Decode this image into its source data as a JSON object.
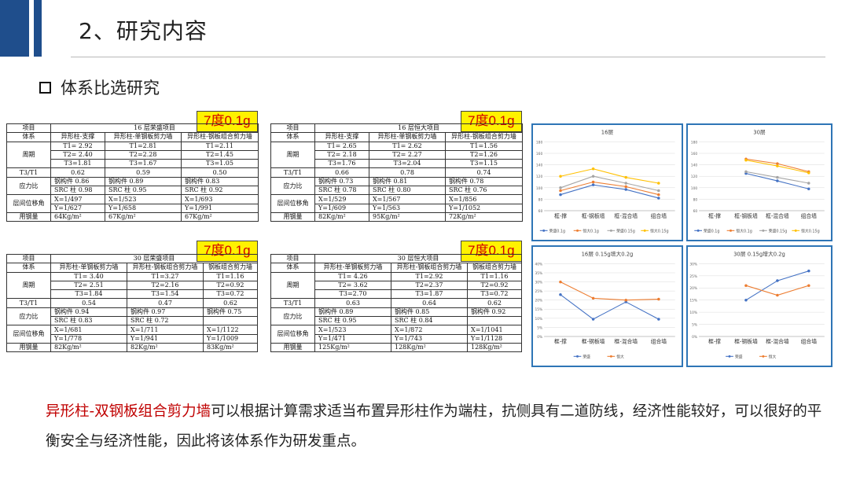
{
  "header": {
    "title": "2、研究内容"
  },
  "section": {
    "heading": "体系比选研究"
  },
  "tags": {
    "t1": "7度0.1g",
    "t2": "7度0.1g",
    "t3": "7度0.1g",
    "t4": "7度0.1g"
  },
  "tables": [
    {
      "title": "16 层荣盛项目",
      "labels": {
        "item": "项目",
        "system": "体系",
        "period": "周期",
        "ratio": "T3/T1",
        "stress": "应力比",
        "drift": "层间位移角",
        "steel": "用钢量"
      },
      "systems": [
        "异形柱-支撑",
        "异形柱-单钢板剪力墙",
        "异形柱-钢板组合剪力墙"
      ],
      "t1": [
        "T1= 2.92",
        "T1=2.81",
        "T1=2.11"
      ],
      "t2": [
        "T2= 2.40",
        "T2=2.28",
        "T2=1.45"
      ],
      "t3": [
        "T3=1.81",
        "T3=1.67",
        "T3=1.05"
      ],
      "ratio": [
        "0.62",
        "0.59",
        "0.50"
      ],
      "stress1": [
        "钢构件 0.86",
        "钢构件 0.89",
        "钢构件 0.83"
      ],
      "stress2": [
        "SRC 柱 0.98",
        "SRC 柱 0.95",
        "SRC 柱 0.92"
      ],
      "drift1": [
        "X=1/497",
        "X=1/523",
        "X=1/693"
      ],
      "drift2": [
        "Y=1/627",
        "Y=1/658",
        "Y=1/991"
      ],
      "steel": [
        "64Kg/m²",
        "67Kg/m²",
        "67Kg/m²"
      ]
    },
    {
      "title": "16 层恒大项目",
      "labels": {
        "item": "项目",
        "system": "体系",
        "period": "周期",
        "ratio": "T3/T1",
        "stress": "应力比",
        "drift": "层间位移角",
        "steel": "用钢量"
      },
      "systems": [
        "异形柱-支撑",
        "异形柱-单钢板剪力墙",
        "异形柱-钢板组合剪力墙"
      ],
      "t1": [
        "T1= 2.65",
        "T1= 2.62",
        "T1=1.56"
      ],
      "t2": [
        "T2= 2.18",
        "T2= 2.27",
        "T2=1.26"
      ],
      "t3": [
        "T3=1.76",
        "T3=2.04",
        "T3=1.15"
      ],
      "ratio": [
        "0.66",
        "0.78",
        "0.74"
      ],
      "stress1": [
        "钢构件 0.73",
        "钢构件 0.81",
        "钢构件 0.78"
      ],
      "stress2": [
        "SRC 柱 0.78",
        "SRC 柱 0.80",
        "SRC 柱 0.76"
      ],
      "drift1": [
        "X=1/529",
        "X=1/567",
        "X=1/856"
      ],
      "drift2": [
        "Y=1/609",
        "Y=1/563",
        "Y=1/1052"
      ],
      "steel": [
        "82Kg/m²",
        "95Kg/m²",
        "72Kg/m²"
      ]
    },
    {
      "title": "30 层荣盛项目",
      "labels": {
        "item": "项目",
        "system": "体系",
        "period": "周期",
        "ratio": "T3/T1",
        "stress": "应力比",
        "drift": "层间位移角",
        "steel": "用钢量"
      },
      "systems": [
        "异形柱-单钢板剪力墙",
        "异形柱-钢板组合剪力墙",
        "钢板组合剪力墙"
      ],
      "t1": [
        "T1= 3.40",
        "T1=3.27",
        "T1=1.16"
      ],
      "t2": [
        "T2= 2.51",
        "T2=2.16",
        "T2=0.92"
      ],
      "t3": [
        "T3=1.84",
        "T3=1.54",
        "T3=0.72"
      ],
      "ratio": [
        "0.54",
        "0.47",
        "0.62"
      ],
      "stress1": [
        "钢构件 0.94",
        "钢构件 0.97",
        "钢构件 0.75"
      ],
      "stress2": [
        "SRC 柱 0.83",
        "SRC 柱 0.72",
        ""
      ],
      "drift1": [
        "X=1/681",
        "X=1/711",
        "X=1/1122"
      ],
      "drift2": [
        "Y=1/778",
        "Y=1/941",
        "Y=1/1009"
      ],
      "steel": [
        "82Kg/m²",
        "82Kg/m²",
        "83Kg/m²"
      ]
    },
    {
      "title": "30 层恒大项目",
      "labels": {
        "item": "项目",
        "system": "体系",
        "period": "周期",
        "ratio": "T3/T1",
        "stress": "应力比",
        "drift": "层间位移角",
        "steel": "用钢量"
      },
      "systems": [
        "异形柱-单钢板剪力墙",
        "异形柱-钢板组合剪力墙",
        "钢板组合剪力墙"
      ],
      "t1": [
        "T1= 4.26",
        "T1=2.92",
        "T1=1.16"
      ],
      "t2": [
        "T2= 3.62",
        "T2=2.37",
        "T2=0.92"
      ],
      "t3": [
        "T3=2.70",
        "T3=1.87",
        "T3=0.72"
      ],
      "ratio": [
        "0.63",
        "0.64",
        "0.62"
      ],
      "stress1": [
        "钢构件 0.89",
        "钢构件 0.85",
        "钢构件 0.92"
      ],
      "stress2": [
        "SRC 柱 0.95",
        "SRC 柱 0.84",
        ""
      ],
      "drift1": [
        "X=1/523",
        "X=1/872",
        "X=1/1041"
      ],
      "drift2": [
        "Y=1/471",
        "Y=1/743",
        "Y=1/1128"
      ],
      "steel": [
        "125Kg/m²",
        "128Kg/m²",
        "128Kg/m²"
      ]
    }
  ],
  "chart_data": [
    {
      "type": "line",
      "title": "16层",
      "categories": [
        "框-撑",
        "框-钢板墙",
        "框-混合墙",
        "组合墙"
      ],
      "ylim": [
        60,
        180
      ],
      "yticks": [
        60,
        80,
        100,
        120,
        140,
        160,
        180
      ],
      "series": [
        {
          "name": "荣盛0.1g",
          "color": "#4472c4",
          "values": [
            88,
            105,
            97,
            82
          ]
        },
        {
          "name": "恒大0.1g",
          "color": "#ed7d31",
          "values": [
            95,
            110,
            102,
            88
          ]
        },
        {
          "name": "荣盛0.15g",
          "color": "#a5a5a5",
          "values": [
            100,
            120,
            108,
            95
          ]
        },
        {
          "name": "恒大0.15g",
          "color": "#ffc000",
          "values": [
            120,
            133,
            118,
            108
          ]
        }
      ],
      "grid": true,
      "legend": "bottom"
    },
    {
      "type": "line",
      "title": "30层",
      "categories": [
        "框-撑",
        "框-钢板墙",
        "框-混合墙",
        "组合墙"
      ],
      "ylim": [
        60,
        180
      ],
      "yticks": [
        60,
        80,
        100,
        120,
        140,
        160,
        180
      ],
      "series": [
        {
          "name": "荣盛0.1g",
          "color": "#4472c4",
          "values": [
            null,
            125,
            112,
            98
          ]
        },
        {
          "name": "恒大0.1g",
          "color": "#ed7d31",
          "values": [
            null,
            150,
            142,
            128
          ]
        },
        {
          "name": "荣盛0.15g",
          "color": "#a5a5a5",
          "values": [
            null,
            128,
            118,
            108
          ]
        },
        {
          "name": "恒大0.15g",
          "color": "#ffc000",
          "values": [
            null,
            148,
            138,
            126
          ]
        }
      ],
      "grid": true,
      "legend": "bottom"
    },
    {
      "type": "line",
      "title": "16层 0.15g增大0.2g",
      "categories": [
        "框-撑",
        "框-钢板墙",
        "框-混合墙",
        "组合墙"
      ],
      "ylim": [
        0,
        40
      ],
      "yticks": [
        "0%",
        "5%",
        "10%",
        "15%",
        "20%",
        "25%",
        "30%",
        "35%",
        "40%"
      ],
      "series": [
        {
          "name": "荣盛",
          "color": "#4472c4",
          "values": [
            23,
            9.5,
            19,
            9.5
          ]
        },
        {
          "name": "恒大",
          "color": "#ed7d31",
          "values": [
            30,
            21,
            20,
            20.5
          ]
        }
      ],
      "grid": true,
      "legend": "bottom"
    },
    {
      "type": "line",
      "title": "30层 0.15g增大0.2g",
      "categories": [
        "框-撑",
        "框-钢板墙",
        "框-混合墙",
        "组合墙"
      ],
      "ylim": [
        0,
        30
      ],
      "yticks": [
        "0%",
        "5%",
        "10%",
        "15%",
        "20%",
        "25%",
        "30%"
      ],
      "series": [
        {
          "name": "荣盛",
          "color": "#4472c4",
          "values": [
            null,
            15,
            23,
            27
          ]
        },
        {
          "name": "恒大",
          "color": "#ed7d31",
          "values": [
            null,
            21,
            17,
            21
          ]
        }
      ],
      "grid": true,
      "legend": "bottom"
    }
  ],
  "conclusion": {
    "highlight": "异形柱-双钢板组合剪力墙",
    "text": "可以根据计算需求适当布置异形柱作为端柱，抗侧具有二道防线，经济性能较好，可以很好的平衡安全与经济性能，因此将该体系作为研发重点。"
  }
}
